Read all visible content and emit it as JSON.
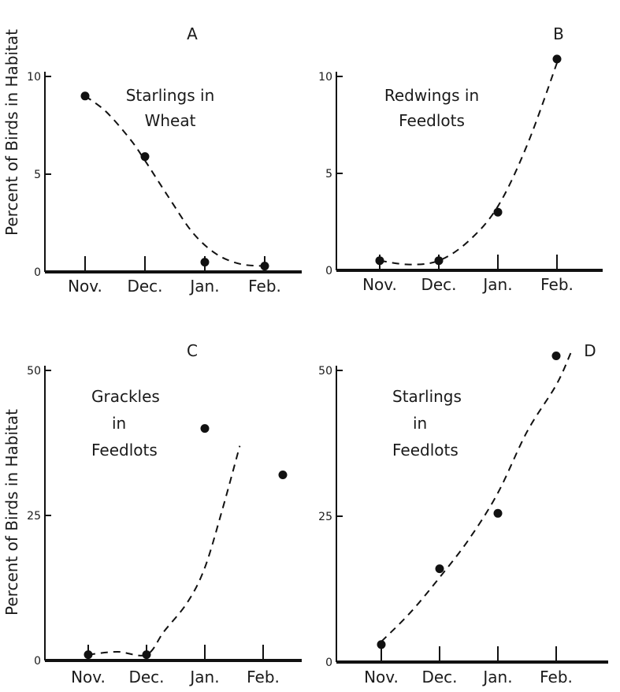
{
  "figure": {
    "ylabel": "Percent of Birds in Habitat"
  },
  "chart_data": [
    {
      "id": "A",
      "type": "scatter",
      "panel_letter": "A",
      "annotation": [
        "Starlings in",
        "Wheat"
      ],
      "categories": [
        "Nov.",
        "Dec.",
        "Jan.",
        "Feb."
      ],
      "ylim": [
        0,
        10
      ],
      "yticks": [
        "0",
        "5",
        "10"
      ],
      "values": [
        9.0,
        5.9,
        0.5,
        0.3
      ],
      "fit": [
        [
          0,
          9.0
        ],
        [
          0.35,
          8.2
        ],
        [
          0.75,
          6.8
        ],
        [
          1.0,
          5.7
        ],
        [
          1.4,
          3.8
        ],
        [
          1.8,
          2.0
        ],
        [
          2.2,
          0.9
        ],
        [
          2.6,
          0.4
        ],
        [
          3.0,
          0.3
        ]
      ]
    },
    {
      "id": "B",
      "type": "scatter",
      "panel_letter": "B",
      "annotation": [
        "Redwings in",
        "Feedlots"
      ],
      "categories": [
        "Nov.",
        "Dec.",
        "Jan.",
        "Feb."
      ],
      "ylim": [
        0,
        10
      ],
      "yticks": [
        "0",
        "5",
        "10"
      ],
      "values": [
        0.5,
        0.5,
        3.0,
        10.9
      ],
      "fit": [
        [
          0,
          0.5
        ],
        [
          0.5,
          0.3
        ],
        [
          1.0,
          0.5
        ],
        [
          1.5,
          1.5
        ],
        [
          2.0,
          3.3
        ],
        [
          2.5,
          6.5
        ],
        [
          3.0,
          10.7
        ]
      ]
    },
    {
      "id": "C",
      "type": "scatter",
      "panel_letter": "C",
      "annotation": [
        "Grackles",
        "in",
        "Feedlots"
      ],
      "categories": [
        "Nov.",
        "Dec.",
        "Jan.",
        "Feb."
      ],
      "ylim": [
        0,
        50
      ],
      "yticks": [
        "0",
        "25",
        "50"
      ],
      "values": [
        1.0,
        1.0,
        40.0,
        32.0
      ],
      "fit": [
        [
          0,
          1.0
        ],
        [
          0.5,
          1.5
        ],
        [
          1.0,
          1.0
        ],
        [
          1.3,
          5.0
        ],
        [
          1.7,
          10.0
        ],
        [
          2.0,
          16.0
        ],
        [
          2.3,
          26.0
        ],
        [
          2.6,
          37.0
        ]
      ]
    },
    {
      "id": "D",
      "type": "scatter",
      "panel_letter": "D",
      "annotation": [
        "Starlings",
        "in",
        "Feedlots"
      ],
      "categories": [
        "Nov.",
        "Dec.",
        "Jan.",
        "Feb."
      ],
      "ylim": [
        0,
        50
      ],
      "yticks": [
        "0",
        "25",
        "50"
      ],
      "values": [
        3.0,
        16.0,
        25.5,
        52.5
      ],
      "fit": [
        [
          0,
          3.5
        ],
        [
          0.5,
          8.5
        ],
        [
          1.0,
          14.5
        ],
        [
          1.5,
          21.0
        ],
        [
          2.0,
          29.0
        ],
        [
          2.5,
          39.5
        ],
        [
          3.0,
          47.5
        ],
        [
          3.25,
          53.0
        ]
      ]
    }
  ]
}
